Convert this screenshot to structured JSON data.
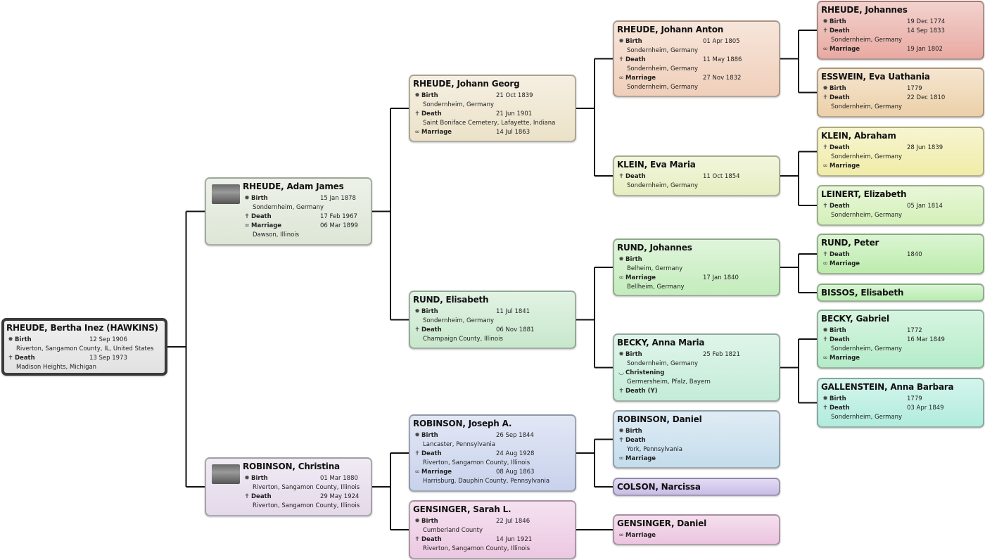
{
  "people": [
    {
      "name": "RHEUDE, Bertha Inez (HAWKINS)",
      "color": "#e2e2e2",
      "events": [
        {
          "type": "birth",
          "label": "Birth",
          "date": "12 Sep 1906",
          "place": "Riverton, Sangamon County, IL, United States"
        },
        {
          "type": "death",
          "label": "Death",
          "date": "13 Sep 1973",
          "place": "Madison Heights, Michigan"
        }
      ]
    },
    {
      "name": "RHEUDE, Adam James",
      "color": "#dde6d6",
      "photo": true,
      "events": [
        {
          "type": "birth",
          "label": "Birth",
          "date": "15 Jan 1878",
          "place": "Sondernheim, Germany"
        },
        {
          "type": "death",
          "label": "Death",
          "date": "17 Feb 1967"
        },
        {
          "type": "marriage",
          "label": "Marriage",
          "date": "06 Mar 1899",
          "place": "Dawson, Illinois"
        }
      ]
    },
    {
      "name": "ROBINSON, Christina",
      "color": "#e4d9ea",
      "photo": true,
      "events": [
        {
          "type": "birth",
          "label": "Birth",
          "date": "01 Mar 1880",
          "place": "Riverton, Sangamon County, Illinois"
        },
        {
          "type": "death",
          "label": "Death",
          "date": "29 May 1924",
          "place": "Riverton, Sangamon County, Illinois"
        }
      ]
    },
    {
      "name": "RHEUDE, Johann Georg",
      "color": "#ece2c8",
      "events": [
        {
          "type": "birth",
          "label": "Birth",
          "date": "21 Oct 1839",
          "place": "Sondernheim, Germany"
        },
        {
          "type": "death",
          "label": "Death",
          "date": "21 Jun 1901",
          "place": "Saint Boniface Cemetery, Lafayette, Indiana"
        },
        {
          "type": "marriage",
          "label": "Marriage",
          "date": "14 Jul 1863"
        }
      ]
    },
    {
      "name": "RUND, Elisabeth",
      "color": "#c8e8cc",
      "events": [
        {
          "type": "birth",
          "label": "Birth",
          "date": "11 Jul 1841",
          "place": "Sondernheim, Germany"
        },
        {
          "type": "death",
          "label": "Death",
          "date": "06 Nov 1881",
          "place": "Champaign County, Illinois"
        }
      ]
    },
    {
      "name": "ROBINSON, Joseph A.",
      "color": "#c8d2ec",
      "events": [
        {
          "type": "birth",
          "label": "Birth",
          "date": "26 Sep 1844",
          "place": "Lancaster, Pennsylvania"
        },
        {
          "type": "death",
          "label": "Death",
          "date": "24 Aug 1928",
          "place": "Riverton, Sangamon County, Illinois"
        },
        {
          "type": "marriage",
          "label": "Marriage",
          "date": "08 Aug 1863",
          "place": "Harrisburg, Dauphin County, Pennsylvania"
        }
      ]
    },
    {
      "name": "GENSINGER, Sarah L.",
      "color": "#ecc8e2",
      "events": [
        {
          "type": "birth",
          "label": "Birth",
          "date": "22 Jul 1846",
          "place": "Cumberland County"
        },
        {
          "type": "death",
          "label": "Death",
          "date": "14 Jun 1921",
          "place": "Riverton, Sangamon County, Illinois"
        }
      ]
    },
    {
      "name": "RHEUDE, Johann Anton",
      "color": "#f0cfba",
      "events": [
        {
          "type": "birth",
          "label": "Birth",
          "date": "01 Apr 1805",
          "place": "Sondernheim, Germany"
        },
        {
          "type": "death",
          "label": "Death",
          "date": "11 May 1886",
          "place": "Sondernheim, Germany"
        },
        {
          "type": "marriage",
          "label": "Marriage",
          "date": "27 Nov 1832",
          "place": "Sondernheim, Germany"
        }
      ]
    },
    {
      "name": "KLEIN, Eva Maria",
      "color": "#e6eec0",
      "events": [
        {
          "type": "death",
          "label": "Death",
          "date": "11 Oct 1854",
          "place": "Sondernheim, Germany"
        }
      ]
    },
    {
      "name": "RUND, Johannes",
      "color": "#c4ecbc",
      "events": [
        {
          "type": "birth",
          "label": "Birth",
          "place": "Belheim, Germany"
        },
        {
          "type": "marriage",
          "label": "Marriage",
          "date": "17 Jan 1840",
          "place": "Bellheim, Germany"
        }
      ]
    },
    {
      "name": "BECKY, Anna Maria",
      "color": "#c4ecd8",
      "events": [
        {
          "type": "birth",
          "label": "Birth",
          "date": "25 Feb 1821",
          "place": "Sondernheim, Germany"
        },
        {
          "type": "christening",
          "label": "Christening",
          "place": "Germersheim, Pfalz, Bayern"
        },
        {
          "type": "death",
          "label": "Death (Y)"
        }
      ]
    },
    {
      "name": "ROBINSON, Daniel",
      "color": "#c4dcec",
      "events": [
        {
          "type": "birth",
          "label": "Birth"
        },
        {
          "type": "death",
          "label": "Death",
          "place": "York, Pennsylvania"
        },
        {
          "type": "marriage",
          "label": "Marriage"
        }
      ]
    },
    {
      "name": "COLSON, Narcissa",
      "color": "#c8bce8",
      "events": []
    },
    {
      "name": "GENSINGER, Daniel",
      "color": "#ecc4e0",
      "events": [
        {
          "type": "marriage",
          "label": "Marriage"
        }
      ]
    },
    {
      "name": "RHEUDE, Johannes",
      "color": "#e8aaa2",
      "events": [
        {
          "type": "birth",
          "label": "Birth",
          "date": "19 Dec 1774"
        },
        {
          "type": "death",
          "label": "Death",
          "date": "14 Sep 1833",
          "place": "Sondernheim, Germany"
        },
        {
          "type": "marriage",
          "label": "Marriage",
          "date": "19 Jan 1802"
        }
      ]
    },
    {
      "name": "ESSWEIN, Eva Uathania",
      "color": "#ecd0a8",
      "events": [
        {
          "type": "birth",
          "label": "Birth",
          "date": "1779"
        },
        {
          "type": "death",
          "label": "Death",
          "date": "22 Dec 1810",
          "place": "Sondernheim, Germany"
        }
      ]
    },
    {
      "name": "KLEIN, Abraham",
      "color": "#f0eca8",
      "events": [
        {
          "type": "death",
          "label": "Death",
          "date": "28 Jun 1839",
          "place": "Sondernheim, Germany"
        },
        {
          "type": "marriage",
          "label": "Marriage"
        }
      ]
    },
    {
      "name": "LEINERT, Elizabeth",
      "color": "#d4f0b8",
      "events": [
        {
          "type": "death",
          "label": "Death",
          "date": "05 Jan 1814",
          "place": "Sondernheim, Germany"
        }
      ]
    },
    {
      "name": "RUND, Peter",
      "color": "#bcecac",
      "events": [
        {
          "type": "death",
          "label": "Death",
          "date": "1840"
        },
        {
          "type": "marriage",
          "label": "Marriage"
        }
      ]
    },
    {
      "name": "BISSOS, Elisabeth",
      "color": "#b8ecb0",
      "events": []
    },
    {
      "name": "BECKY, Gabriel",
      "color": "#b4ecc8",
      "events": [
        {
          "type": "birth",
          "label": "Birth",
          "date": "1772"
        },
        {
          "type": "death",
          "label": "Death",
          "date": "16 Mar 1849",
          "place": "Sondernheim, Germany"
        },
        {
          "type": "marriage",
          "label": "Marriage"
        }
      ]
    },
    {
      "name": "GALLENSTEIN, Anna Barbara",
      "color": "#b0ecdc",
      "events": [
        {
          "type": "birth",
          "label": "Birth",
          "date": "1779"
        },
        {
          "type": "death",
          "label": "Death",
          "date": "03 Apr 1849",
          "place": "Sondernheim, Germany"
        }
      ]
    }
  ],
  "icons": {
    "birth": "birth-icon",
    "death": "death-cross-icon",
    "marriage": "marriage-rings-icon",
    "christening": "christening-icon"
  }
}
